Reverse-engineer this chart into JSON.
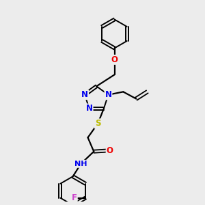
{
  "background_color": "#ececec",
  "bond_color": "#000000",
  "atom_colors": {
    "N": "#0000ee",
    "O": "#ee0000",
    "S": "#bbbb00",
    "F": "#cc44cc",
    "H": "#44aaaa",
    "C": "#000000"
  },
  "font_size_atom": 8.5,
  "figsize": [
    3.0,
    3.0
  ],
  "dpi": 100
}
